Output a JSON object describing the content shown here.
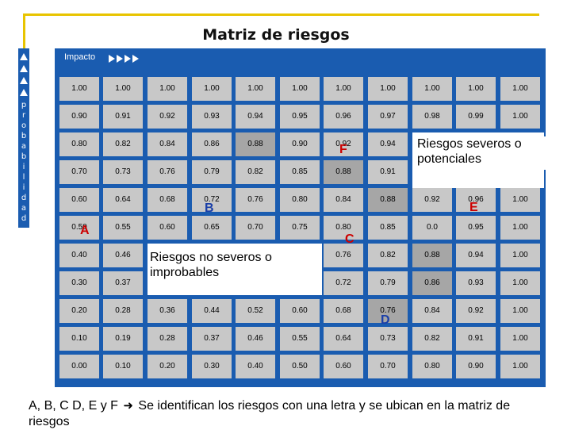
{
  "title": "Matriz de riesgos",
  "axes": {
    "impact_label": "Impacto",
    "probability_letters": [
      "p",
      "r",
      "o",
      "b",
      "a",
      "b",
      "i",
      "l",
      "i",
      "d",
      "a",
      "d"
    ]
  },
  "matrix": [
    [
      "1.00",
      "1.00",
      "1.00",
      "1.00",
      "1.00",
      "1.00",
      "1.00",
      "1.00",
      "1.00",
      "1.00",
      "1.00"
    ],
    [
      "0.90",
      "0.91",
      "0.92",
      "0.93",
      "0.94",
      "0.95",
      "0.96",
      "0.97",
      "0.98",
      "0.99",
      "1.00"
    ],
    [
      "0.80",
      "0.82",
      "0.84",
      "0.86",
      "0.88",
      "0.90",
      "0.92",
      "0.94",
      "",
      "",
      ""
    ],
    [
      "0.70",
      "0.73",
      "0.76",
      "0.79",
      "0.82",
      "0.85",
      "0.88",
      "0.91",
      "",
      "",
      ""
    ],
    [
      "0.60",
      "0.64",
      "0.68",
      "0.72",
      "0.76",
      "0.80",
      "0.84",
      "0.88",
      "0.92",
      "0.96",
      "1.00"
    ],
    [
      "0.50",
      "0.55",
      "0.60",
      "0.65",
      "0.70",
      "0.75",
      "0.80",
      "0.85",
      "0.0",
      "0.95",
      "1.00"
    ],
    [
      "0.40",
      "0.46",
      "",
      "",
      "",
      "",
      "0.76",
      "0.82",
      "0.88",
      "0.94",
      "1.00"
    ],
    [
      "0.30",
      "0.37",
      "",
      "",
      "",
      "",
      "0.72",
      "0.79",
      "0.86",
      "0.93",
      "1.00"
    ],
    [
      "0.20",
      "0.28",
      "0.36",
      "0.44",
      "0.52",
      "0.60",
      "0.68",
      "0.76",
      "0.84",
      "0.92",
      "1.00"
    ],
    [
      "0.10",
      "0.19",
      "0.28",
      "0.37",
      "0.46",
      "0.55",
      "0.64",
      "0.73",
      "0.82",
      "0.91",
      "1.00"
    ],
    [
      "0.00",
      "0.10",
      "0.20",
      "0.30",
      "0.40",
      "0.50",
      "0.60",
      "0.70",
      "0.80",
      "0.90",
      "1.00"
    ]
  ],
  "callouts": {
    "severe": "Riesgos severos o potenciales",
    "non_severe": "Riesgos no severos o improbables"
  },
  "markers": [
    {
      "label": "A",
      "color": "#cc0000"
    },
    {
      "label": "B",
      "color": "#1a3fa8"
    },
    {
      "label": "C",
      "color": "#cc0000"
    },
    {
      "label": "D",
      "color": "#1a3fa8"
    },
    {
      "label": "E",
      "color": "#cc0000"
    },
    {
      "label": "F",
      "color": "#cc0000"
    }
  ],
  "footer": {
    "prefix": "A, B, C D, E y F",
    "arrow_icon": "arrow-right-icon",
    "text": "Se identifican los riesgos con una letra  y se ubican en la matriz de riesgos"
  },
  "colors": {
    "panel": "#1a5cb0",
    "cell": "#c8c8c8",
    "cell_highlight": "#a6a6a6",
    "accent_rule": "#e8c400"
  }
}
